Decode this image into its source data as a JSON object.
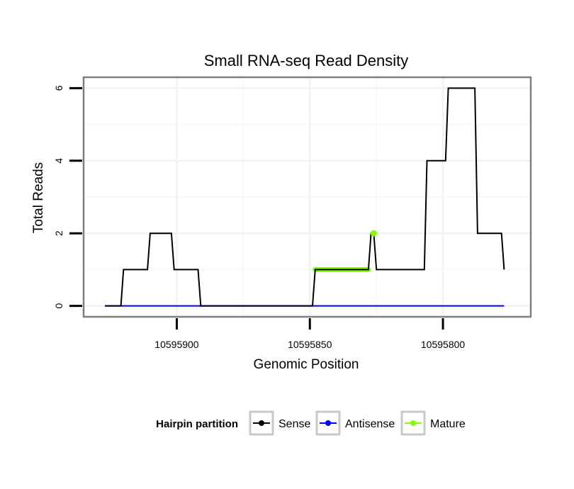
{
  "chart_data": {
    "type": "line",
    "title": "Small RNA-seq Read Density",
    "xlabel": "Genomic Position",
    "ylabel": "Total Reads",
    "xlim": [
      10595935,
      10595767
    ],
    "x_reversed": true,
    "ylim": [
      -0.3,
      6.3
    ],
    "x_ticks": [
      10595900,
      10595850,
      10595800
    ],
    "x_tick_labels": [
      "10595900",
      "10595850",
      "10595800"
    ],
    "y_ticks": [
      0,
      2,
      4,
      6
    ],
    "y_tick_labels": [
      "0",
      "2",
      "4",
      "6"
    ],
    "grid": true,
    "legend": {
      "title": "Hairpin partition",
      "position": "bottom",
      "entries": [
        "Sense",
        "Antisense",
        "Mature"
      ]
    },
    "series": [
      {
        "name": "Sense",
        "color": "#000000",
        "x": [
          10595927,
          10595921,
          10595920,
          10595911,
          10595910,
          10595902,
          10595901,
          10595892,
          10595891,
          10595849,
          10595848,
          10595828,
          10595827,
          10595826,
          10595825,
          10595807,
          10595806,
          10595799,
          10595798,
          10595788,
          10595787,
          10595778,
          10595777
        ],
        "y": [
          0,
          0,
          1,
          1,
          2,
          2,
          1,
          1,
          0,
          0,
          1,
          1,
          2,
          2,
          1,
          1,
          4,
          4,
          6,
          6,
          2,
          2,
          1
        ]
      },
      {
        "name": "Antisense",
        "color": "#0000ff",
        "x": [
          10595927,
          10595777
        ],
        "y": [
          0,
          0
        ]
      },
      {
        "name": "Mature",
        "color": "#7fff00",
        "x": [
          10595848,
          10595828
        ],
        "y": [
          1,
          1
        ],
        "point": {
          "x": 10595826,
          "y": 2
        }
      }
    ]
  }
}
